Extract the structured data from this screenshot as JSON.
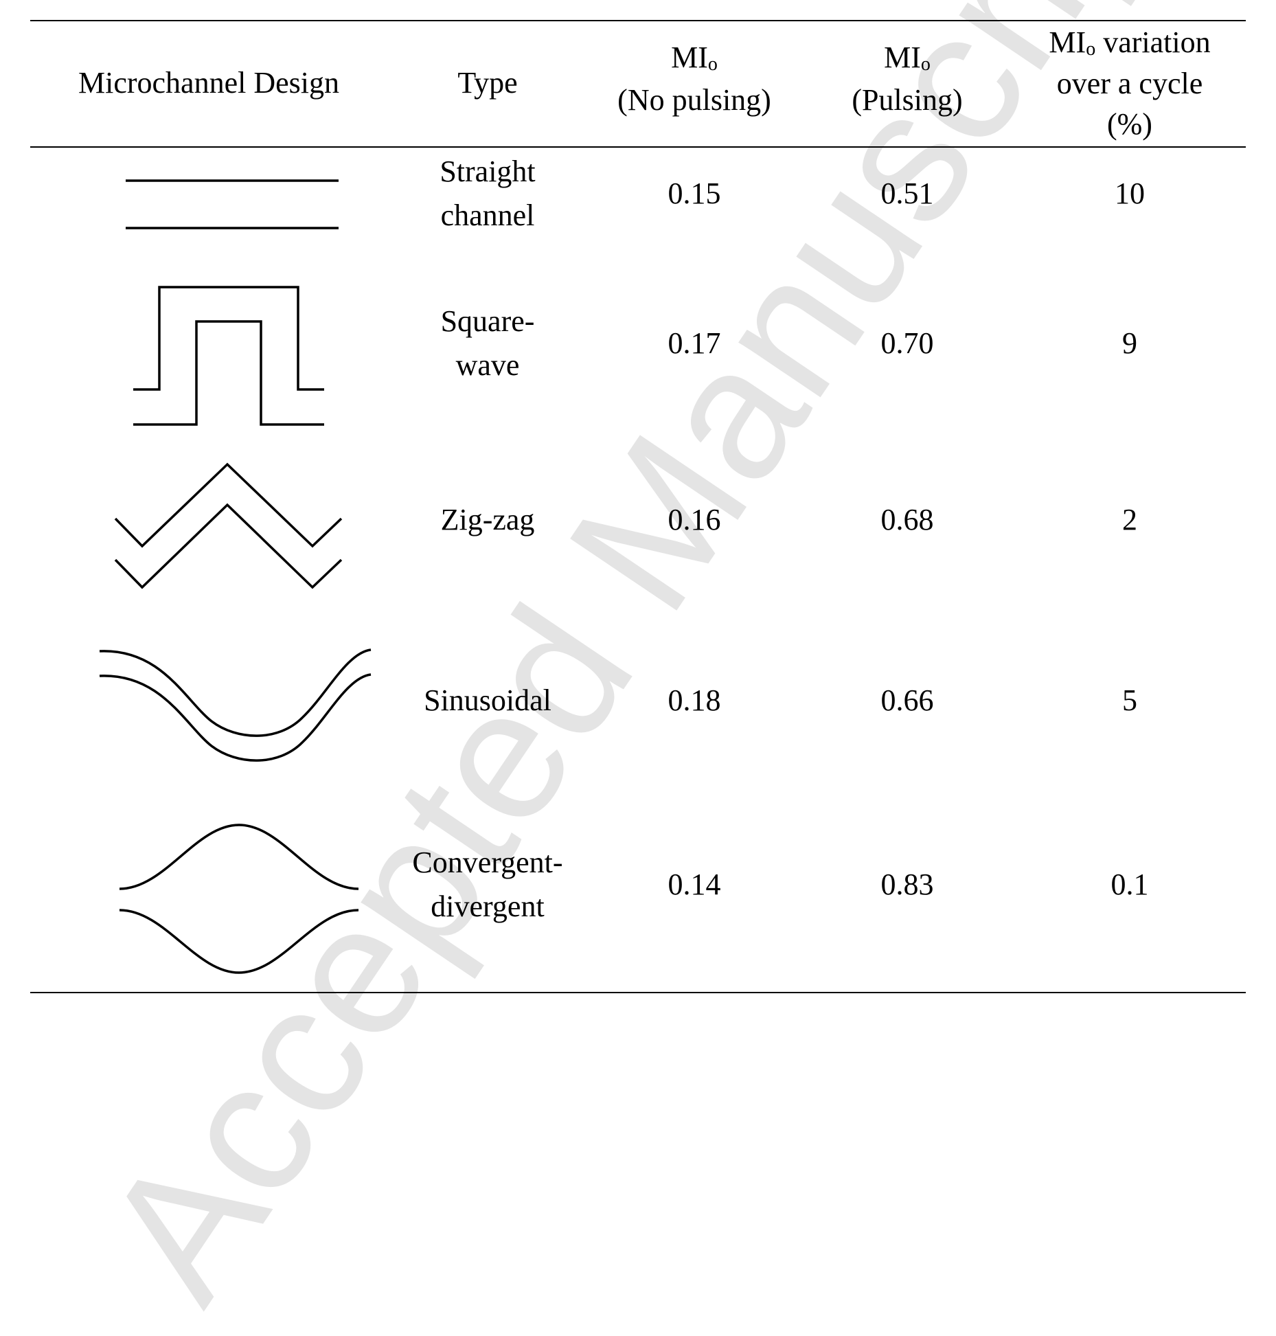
{
  "watermark": "Accepted Manuscript",
  "headers": {
    "design": "Microchannel Design",
    "type": "Type",
    "mi_no_pulsing_main": "MI",
    "mi_no_pulsing_sub": "o",
    "mi_no_pulsing_note": "(No pulsing)",
    "mi_pulsing_main": "MI",
    "mi_pulsing_sub": "o",
    "mi_pulsing_note": "(Pulsing)",
    "variation_main": "MI",
    "variation_sub": "o",
    "variation_line1_rest": " variation",
    "variation_line2": "over a cycle",
    "variation_line3": "(%)"
  },
  "rows": [
    {
      "design_icon": "straight-channel-icon",
      "type_line1": "Straight",
      "type_line2": "channel",
      "mi_no_pulsing": "0.15",
      "mi_pulsing": "0.51",
      "variation": "10"
    },
    {
      "design_icon": "square-wave-channel-icon",
      "type_line1": "Square-",
      "type_line2": "wave",
      "mi_no_pulsing": "0.17",
      "mi_pulsing": "0.70",
      "variation": "9"
    },
    {
      "design_icon": "zig-zag-channel-icon",
      "type_line1": "Zig-zag",
      "type_line2": "",
      "mi_no_pulsing": "0.16",
      "mi_pulsing": "0.68",
      "variation": "2"
    },
    {
      "design_icon": "sinusoidal-channel-icon",
      "type_line1": "Sinusoidal",
      "type_line2": "",
      "mi_no_pulsing": "0.18",
      "mi_pulsing": "0.66",
      "variation": "5"
    },
    {
      "design_icon": "convergent-divergent-channel-icon",
      "type_line1": "Convergent-",
      "type_line2": "divergent",
      "mi_no_pulsing": "0.14",
      "mi_pulsing": "0.83",
      "variation": "0.1"
    }
  ]
}
